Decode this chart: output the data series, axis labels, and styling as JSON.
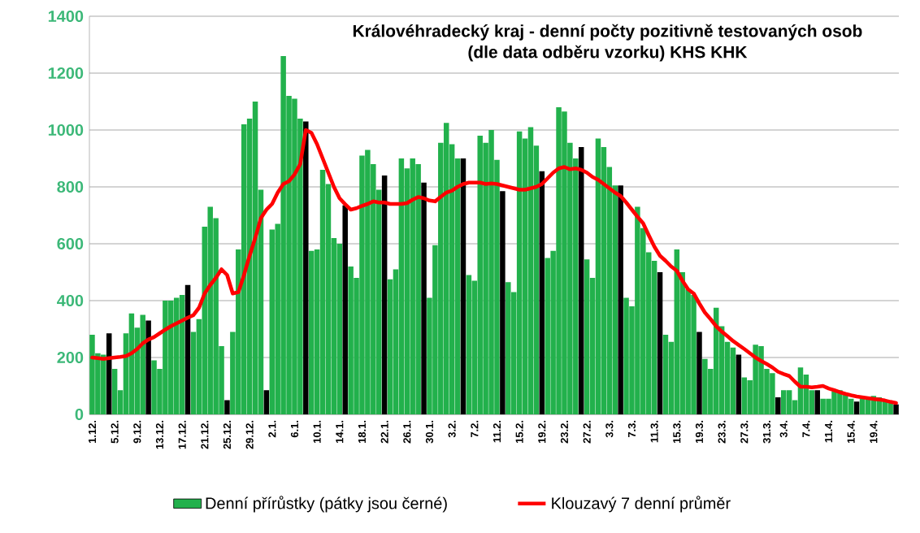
{
  "chart_data": {
    "type": "bar",
    "title": "Královéhradecký kraj - denní počty pozitivně testovaných osob",
    "subtitle": "(dle data odběru vzorku)  KHS KHK",
    "categories": [
      "1.12.",
      null,
      null,
      null,
      "5.12.",
      null,
      null,
      null,
      "9.12.",
      null,
      null,
      null,
      "13.12.",
      null,
      null,
      null,
      "17.12.",
      null,
      null,
      null,
      "21.12.",
      null,
      null,
      null,
      "25.12.",
      null,
      null,
      null,
      "29.12.",
      null,
      null,
      null,
      "2.1.",
      null,
      null,
      null,
      "6.1.",
      null,
      null,
      null,
      "10.1.",
      null,
      null,
      null,
      "14.1.",
      null,
      null,
      null,
      "18.1.",
      null,
      null,
      null,
      "22.1.",
      null,
      null,
      null,
      "26.1.",
      null,
      null,
      null,
      "30.1.",
      null,
      null,
      null,
      "3.2.",
      null,
      null,
      null,
      "7.2.",
      null,
      null,
      null,
      "11.2.",
      null,
      null,
      null,
      "15.2.",
      null,
      null,
      null,
      "19.2.",
      null,
      null,
      null,
      "23.2.",
      null,
      null,
      null,
      "27.2.",
      null,
      null,
      null,
      "3.3.",
      null,
      null,
      null,
      "7.3.",
      null,
      null,
      null,
      "11.3.",
      null,
      null,
      null,
      "15.3.",
      null,
      null,
      null,
      "19.3.",
      null,
      null,
      null,
      "23.3.",
      null,
      null,
      null,
      "27.3.",
      null,
      null,
      null,
      "31.3.",
      null,
      null,
      "3.4.",
      null,
      null,
      null,
      "7.4.",
      null,
      null,
      null,
      "11.4.",
      null,
      null,
      null,
      "15.4.",
      null,
      null,
      null,
      "19.4.",
      null,
      null,
      null,
      null
    ],
    "series": [
      {
        "name": "Denní přírůstky (pátky jsou černé)",
        "color": "#22b14c",
        "colors": [
          "#22b14c",
          "#22b14c",
          "#22b14c",
          "#000000",
          "#22b14c",
          "#22b14c",
          "#22b14c",
          "#22b14c",
          "#22b14c",
          "#22b14c",
          "#000000",
          "#22b14c",
          "#22b14c",
          "#22b14c",
          "#22b14c",
          "#22b14c",
          "#22b14c",
          "#000000",
          "#22b14c",
          "#22b14c",
          "#22b14c",
          "#22b14c",
          "#22b14c",
          "#22b14c",
          "#000000",
          "#22b14c",
          "#22b14c",
          "#22b14c",
          "#22b14c",
          "#22b14c",
          "#22b14c",
          "#000000",
          "#22b14c",
          "#22b14c",
          "#22b14c",
          "#22b14c",
          "#22b14c",
          "#22b14c",
          "#000000",
          "#22b14c",
          "#22b14c",
          "#22b14c",
          "#22b14c",
          "#22b14c",
          "#22b14c",
          "#000000",
          "#22b14c",
          "#22b14c",
          "#22b14c",
          "#22b14c",
          "#22b14c",
          "#22b14c",
          "#000000",
          "#22b14c",
          "#22b14c",
          "#22b14c",
          "#22b14c",
          "#22b14c",
          "#22b14c",
          "#000000",
          "#22b14c",
          "#22b14c",
          "#22b14c",
          "#22b14c",
          "#22b14c",
          "#22b14c",
          "#000000",
          "#22b14c",
          "#22b14c",
          "#22b14c",
          "#22b14c",
          "#22b14c",
          "#22b14c",
          "#000000",
          "#22b14c",
          "#22b14c",
          "#22b14c",
          "#22b14c",
          "#22b14c",
          "#22b14c",
          "#000000",
          "#22b14c",
          "#22b14c",
          "#22b14c",
          "#22b14c",
          "#22b14c",
          "#22b14c",
          "#000000",
          "#22b14c",
          "#22b14c",
          "#22b14c",
          "#22b14c",
          "#22b14c",
          "#22b14c",
          "#000000",
          "#22b14c",
          "#22b14c",
          "#22b14c",
          "#22b14c",
          "#22b14c",
          "#22b14c",
          "#000000",
          "#22b14c",
          "#22b14c",
          "#22b14c",
          "#22b14c",
          "#22b14c",
          "#22b14c",
          "#000000",
          "#22b14c",
          "#22b14c",
          "#22b14c",
          "#22b14c",
          "#22b14c",
          "#22b14c",
          "#000000",
          "#22b14c",
          "#22b14c",
          "#22b14c",
          "#22b14c",
          "#22b14c",
          "#22b14c",
          "#000000",
          "#22b14c",
          "#22b14c",
          "#22b14c",
          "#22b14c",
          "#22b14c",
          "#22b14c",
          "#000000",
          "#22b14c",
          "#22b14c",
          "#22b14c",
          "#22b14c",
          "#22b14c",
          "#22b14c",
          "#000000",
          "#22b14c",
          "#22b14c",
          "#22b14c",
          "#22b14c",
          "#22b14c",
          "#22b14c",
          "#000000"
        ],
        "values": [
          280,
          215,
          210,
          285,
          160,
          85,
          285,
          355,
          305,
          350,
          330,
          190,
          160,
          400,
          400,
          410,
          420,
          455,
          290,
          335,
          660,
          730,
          690,
          240,
          50,
          290,
          580,
          1020,
          1040,
          1100,
          790,
          85,
          650,
          670,
          1260,
          1120,
          1110,
          1040,
          1030,
          575,
          580,
          860,
          810,
          620,
          600,
          735,
          520,
          480,
          910,
          930,
          880,
          790,
          840,
          475,
          510,
          900,
          865,
          900,
          880,
          815,
          410,
          595,
          955,
          1025,
          950,
          900,
          900,
          490,
          470,
          980,
          955,
          1000,
          895,
          785,
          465,
          430,
          995,
          970,
          1010,
          945,
          855,
          550,
          575,
          1080,
          1065,
          955,
          900,
          940,
          545,
          480,
          970,
          940,
          870,
          805,
          805,
          410,
          380,
          730,
          655,
          570,
          540,
          500,
          280,
          255,
          580,
          500,
          440,
          420,
          290,
          195,
          160,
          375,
          310,
          255,
          235,
          210,
          130,
          120,
          245,
          240,
          160,
          145,
          60,
          85,
          85,
          50,
          165,
          140,
          85,
          85,
          55,
          55,
          80,
          85,
          70,
          55,
          45,
          55,
          60,
          65,
          60,
          50,
          45,
          35
        ]
      },
      {
        "name": "Klouzavý 7 denní průměr",
        "type": "line",
        "color": "#ff0000",
        "values": [
          200,
          198,
          195,
          198,
          200,
          202,
          205,
          215,
          230,
          250,
          263,
          272,
          285,
          298,
          310,
          320,
          330,
          340,
          349,
          375,
          425,
          455,
          480,
          510,
          490,
          425,
          430,
          490,
          558,
          620,
          690,
          720,
          740,
          780,
          810,
          820,
          844,
          880,
          1000,
          990,
          950,
          900,
          850,
          800,
          760,
          739,
          720,
          725,
          733,
          740,
          749,
          745,
          745,
          740,
          740,
          740,
          743,
          755,
          764,
          760,
          752,
          749,
          765,
          780,
          787,
          800,
          810,
          815,
          815,
          815,
          810,
          812,
          810,
          805,
          800,
          795,
          790,
          790,
          795,
          800,
          810,
          830,
          850,
          865,
          870,
          862,
          865,
          860,
          850,
          835,
          825,
          810,
          795,
          780,
          768,
          745,
          720,
          695,
          672,
          630,
          590,
          558,
          540,
          520,
          505,
          470,
          440,
          425,
          390,
          358,
          335,
          310,
          291,
          275,
          258,
          244,
          230,
          215,
          200,
          188,
          177,
          165,
          150,
          142,
          135,
          115,
          97,
          97,
          95,
          97,
          100,
          91,
          85,
          78,
          72,
          67,
          63,
          60,
          57,
          54,
          52,
          49,
          44,
          40
        ]
      }
    ],
    "ylim": [
      0,
      1400
    ],
    "yticks": [
      0,
      200,
      400,
      600,
      800,
      1000,
      1200,
      1400
    ],
    "grid": "y",
    "legend": "bottom"
  }
}
